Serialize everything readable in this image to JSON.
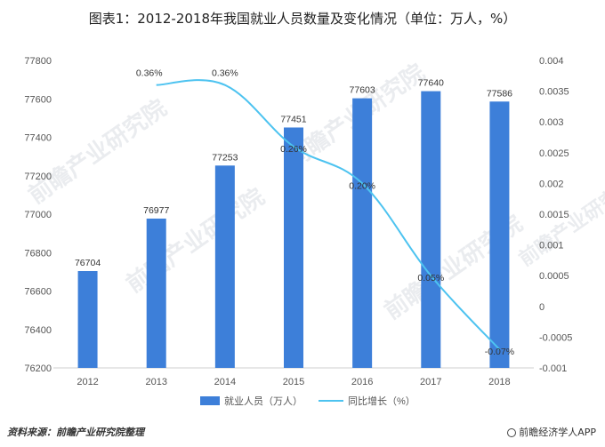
{
  "title": "图表1：2012-2018年我国就业人员数量及变化情况（单位：万人，%）",
  "footer": {
    "source": "资料来源：前瞻产业研究院整理",
    "brand": "前瞻经济学人APP"
  },
  "watermark": "前瞻产业研究院",
  "chart_data": {
    "type": "bar+line",
    "title": "图表1：2012-2018年我国就业人员数量及变化情况（单位：万人，%）",
    "categories": [
      "2012",
      "2013",
      "2014",
      "2015",
      "2016",
      "2017",
      "2018"
    ],
    "series": [
      {
        "name": "就业人员（万人）",
        "type": "bar",
        "axis": "left",
        "color": "#3d7fd9",
        "values": [
          76704,
          76977,
          77253,
          77451,
          77603,
          77640,
          77586
        ],
        "labels": [
          "76704",
          "76977",
          "77253",
          "77451",
          "77603",
          "77640",
          "77586"
        ]
      },
      {
        "name": "同比增长（%）",
        "type": "line",
        "axis": "right",
        "color": "#4dc3f0",
        "x": [
          "2013",
          "2014",
          "2015",
          "2016",
          "2017",
          "2018"
        ],
        "values": [
          0.0036,
          0.0036,
          0.0026,
          0.002,
          0.0005,
          -0.0007
        ],
        "labels": [
          "0.36%",
          "0.36%",
          "0.26%",
          "0.20%",
          "0.05%",
          "-0.07%"
        ]
      }
    ],
    "y_left": {
      "min": 76200,
      "max": 77800,
      "ticks": [
        "76200",
        "76400",
        "76600",
        "76800",
        "77000",
        "77200",
        "77400",
        "77600",
        "77800"
      ]
    },
    "y_right": {
      "min": -0.001,
      "max": 0.004,
      "ticks": [
        "-0.001",
        "-0.0005",
        "0",
        "0.0005",
        "0.001",
        "0.0015",
        "0.002",
        "0.0025",
        "0.003",
        "0.0035",
        "0.004"
      ]
    },
    "legend": {
      "position": "bottom",
      "items": [
        "就业人员（万人）",
        "同比增长（%）"
      ]
    },
    "grid": false
  }
}
